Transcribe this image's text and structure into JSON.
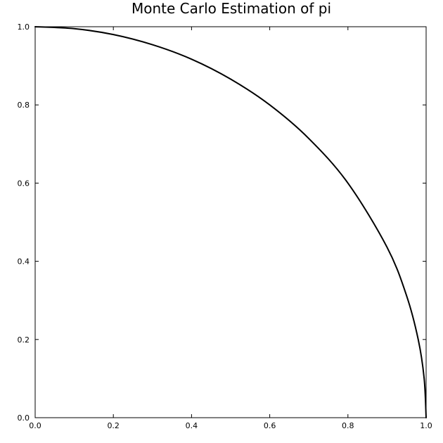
{
  "chart_data": {
    "type": "line",
    "title": "Monte Carlo Estimation of pi",
    "xlabel": "",
    "ylabel": "",
    "xlim": [
      0,
      1
    ],
    "ylim": [
      0,
      1
    ],
    "xticks": [
      0.0,
      0.2,
      0.4,
      0.6,
      0.8,
      1.0
    ],
    "yticks": [
      0.0,
      0.2,
      0.4,
      0.6,
      0.8,
      1.0
    ],
    "xtick_labels": [
      "0.0",
      "0.2",
      "0.4",
      "0.6",
      "0.8",
      "1.0"
    ],
    "ytick_labels": [
      "0.0",
      "0.2",
      "0.4",
      "0.6",
      "0.8",
      "1.0"
    ],
    "grid": false,
    "legend": "none",
    "series": [
      {
        "color": "#000000",
        "x": [
          0.0,
          0.1,
          0.2,
          0.3,
          0.4,
          0.5,
          0.6,
          0.7,
          0.8,
          0.9,
          0.95,
          0.98,
          0.995,
          1.0
        ],
        "y": [
          1.0,
          0.995,
          0.98,
          0.954,
          0.917,
          0.866,
          0.8,
          0.714,
          0.6,
          0.436,
          0.312,
          0.199,
          0.1,
          0.0
        ]
      }
    ]
  }
}
